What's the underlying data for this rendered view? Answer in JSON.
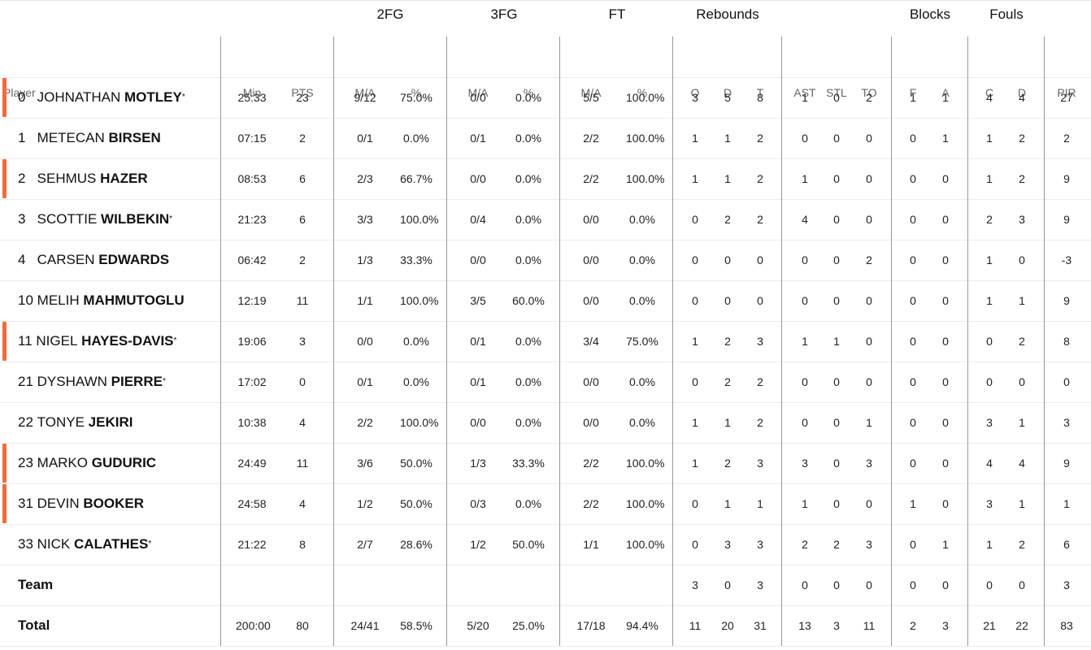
{
  "groups": {
    "twofg": "2FG",
    "threefg": "3FG",
    "ft": "FT",
    "rebounds": "Rebounds",
    "blocks": "Blocks",
    "fouls": "Fouls"
  },
  "columns": {
    "player": "Player",
    "min": "Min",
    "pts": "PTS",
    "fg2_ma": "M/A",
    "fg2_pct": "%",
    "fg3_ma": "M/A",
    "fg3_pct": "%",
    "ft_ma": "M/A",
    "ft_pct": "%",
    "reb_o": "O",
    "reb_d": "D",
    "reb_t": "T",
    "ast": "AST",
    "stl": "STL",
    "to": "TO",
    "blk_f": "F",
    "blk_a": "A",
    "foul_c": "C",
    "foul_d": "D",
    "pir": "PIR"
  },
  "accent_color": "#f26b3a",
  "players": [
    {
      "num": "0",
      "first": "JOHNATHAN",
      "last": "MOTLEY",
      "starter": "*",
      "on_court": true,
      "min": "25:33",
      "pts": "23",
      "fg2": "9/12",
      "fg2p": "75.0%",
      "fg3": "0/0",
      "fg3p": "0.0%",
      "ft": "5/5",
      "ftp": "100.0%",
      "o": "3",
      "d": "5",
      "t": "8",
      "ast": "1",
      "stl": "0",
      "to": "2",
      "bf": "1",
      "ba": "1",
      "fc": "4",
      "fd": "4",
      "pir": "27"
    },
    {
      "num": "1",
      "first": "METECAN",
      "last": "BIRSEN",
      "starter": "",
      "on_court": false,
      "min": "07:15",
      "pts": "2",
      "fg2": "0/1",
      "fg2p": "0.0%",
      "fg3": "0/1",
      "fg3p": "0.0%",
      "ft": "2/2",
      "ftp": "100.0%",
      "o": "1",
      "d": "1",
      "t": "2",
      "ast": "0",
      "stl": "0",
      "to": "0",
      "bf": "0",
      "ba": "1",
      "fc": "1",
      "fd": "2",
      "pir": "2"
    },
    {
      "num": "2",
      "first": "SEHMUS",
      "last": "HAZER",
      "starter": "",
      "on_court": true,
      "min": "08:53",
      "pts": "6",
      "fg2": "2/3",
      "fg2p": "66.7%",
      "fg3": "0/0",
      "fg3p": "0.0%",
      "ft": "2/2",
      "ftp": "100.0%",
      "o": "1",
      "d": "1",
      "t": "2",
      "ast": "1",
      "stl": "0",
      "to": "0",
      "bf": "0",
      "ba": "0",
      "fc": "1",
      "fd": "2",
      "pir": "9"
    },
    {
      "num": "3",
      "first": "SCOTTIE",
      "last": "WILBEKIN",
      "starter": "*",
      "on_court": false,
      "min": "21:23",
      "pts": "6",
      "fg2": "3/3",
      "fg2p": "100.0%",
      "fg3": "0/4",
      "fg3p": "0.0%",
      "ft": "0/0",
      "ftp": "0.0%",
      "o": "0",
      "d": "2",
      "t": "2",
      "ast": "4",
      "stl": "0",
      "to": "0",
      "bf": "0",
      "ba": "0",
      "fc": "2",
      "fd": "3",
      "pir": "9"
    },
    {
      "num": "4",
      "first": "CARSEN",
      "last": "EDWARDS",
      "starter": "",
      "on_court": false,
      "min": "06:42",
      "pts": "2",
      "fg2": "1/3",
      "fg2p": "33.3%",
      "fg3": "0/0",
      "fg3p": "0.0%",
      "ft": "0/0",
      "ftp": "0.0%",
      "o": "0",
      "d": "0",
      "t": "0",
      "ast": "0",
      "stl": "0",
      "to": "2",
      "bf": "0",
      "ba": "0",
      "fc": "1",
      "fd": "0",
      "pir": "-3"
    },
    {
      "num": "10",
      "first": "MELIH",
      "last": "MAHMUTOGLU",
      "starter": "",
      "on_court": false,
      "min": "12:19",
      "pts": "11",
      "fg2": "1/1",
      "fg2p": "100.0%",
      "fg3": "3/5",
      "fg3p": "60.0%",
      "ft": "0/0",
      "ftp": "0.0%",
      "o": "0",
      "d": "0",
      "t": "0",
      "ast": "0",
      "stl": "0",
      "to": "0",
      "bf": "0",
      "ba": "0",
      "fc": "1",
      "fd": "1",
      "pir": "9"
    },
    {
      "num": "11",
      "first": "NIGEL",
      "last": "HAYES-DAVIS",
      "starter": "*",
      "on_court": true,
      "min": "19:06",
      "pts": "3",
      "fg2": "0/0",
      "fg2p": "0.0%",
      "fg3": "0/1",
      "fg3p": "0.0%",
      "ft": "3/4",
      "ftp": "75.0%",
      "o": "1",
      "d": "2",
      "t": "3",
      "ast": "1",
      "stl": "1",
      "to": "0",
      "bf": "0",
      "ba": "0",
      "fc": "0",
      "fd": "2",
      "pir": "8"
    },
    {
      "num": "21",
      "first": "DYSHAWN",
      "last": "PIERRE",
      "starter": "*",
      "on_court": false,
      "min": "17:02",
      "pts": "0",
      "fg2": "0/1",
      "fg2p": "0.0%",
      "fg3": "0/1",
      "fg3p": "0.0%",
      "ft": "0/0",
      "ftp": "0.0%",
      "o": "0",
      "d": "2",
      "t": "2",
      "ast": "0",
      "stl": "0",
      "to": "0",
      "bf": "0",
      "ba": "0",
      "fc": "0",
      "fd": "0",
      "pir": "0"
    },
    {
      "num": "22",
      "first": "TONYE",
      "last": "JEKIRI",
      "starter": "",
      "on_court": false,
      "min": "10:38",
      "pts": "4",
      "fg2": "2/2",
      "fg2p": "100.0%",
      "fg3": "0/0",
      "fg3p": "0.0%",
      "ft": "0/0",
      "ftp": "0.0%",
      "o": "1",
      "d": "1",
      "t": "2",
      "ast": "0",
      "stl": "0",
      "to": "1",
      "bf": "0",
      "ba": "0",
      "fc": "3",
      "fd": "1",
      "pir": "3"
    },
    {
      "num": "23",
      "first": "MARKO",
      "last": "GUDURIC",
      "starter": "",
      "on_court": true,
      "min": "24:49",
      "pts": "11",
      "fg2": "3/6",
      "fg2p": "50.0%",
      "fg3": "1/3",
      "fg3p": "33.3%",
      "ft": "2/2",
      "ftp": "100.0%",
      "o": "1",
      "d": "2",
      "t": "3",
      "ast": "3",
      "stl": "0",
      "to": "3",
      "bf": "0",
      "ba": "0",
      "fc": "4",
      "fd": "4",
      "pir": "9"
    },
    {
      "num": "31",
      "first": "DEVIN",
      "last": "BOOKER",
      "starter": "",
      "on_court": true,
      "min": "24:58",
      "pts": "4",
      "fg2": "1/2",
      "fg2p": "50.0%",
      "fg3": "0/3",
      "fg3p": "0.0%",
      "ft": "2/2",
      "ftp": "100.0%",
      "o": "0",
      "d": "1",
      "t": "1",
      "ast": "1",
      "stl": "0",
      "to": "0",
      "bf": "1",
      "ba": "0",
      "fc": "3",
      "fd": "1",
      "pir": "1"
    },
    {
      "num": "33",
      "first": "NICK",
      "last": "CALATHES",
      "starter": "*",
      "on_court": false,
      "min": "21:22",
      "pts": "8",
      "fg2": "2/7",
      "fg2p": "28.6%",
      "fg3": "1/2",
      "fg3p": "50.0%",
      "ft": "1/1",
      "ftp": "100.0%",
      "o": "0",
      "d": "3",
      "t": "3",
      "ast": "2",
      "stl": "2",
      "to": "3",
      "bf": "0",
      "ba": "1",
      "fc": "1",
      "fd": "2",
      "pir": "6"
    }
  ],
  "team": {
    "label": "Team",
    "min": "",
    "pts": "",
    "fg2": "",
    "fg2p": "",
    "fg3": "",
    "fg3p": "",
    "ft": "",
    "ftp": "",
    "o": "3",
    "d": "0",
    "t": "3",
    "ast": "0",
    "stl": "0",
    "to": "0",
    "bf": "0",
    "ba": "0",
    "fc": "0",
    "fd": "0",
    "pir": "3"
  },
  "total": {
    "label": "Total",
    "min": "200:00",
    "pts": "80",
    "fg2": "24/41",
    "fg2p": "58.5%",
    "fg3": "5/20",
    "fg3p": "25.0%",
    "ft": "17/18",
    "ftp": "94.4%",
    "o": "11",
    "d": "20",
    "t": "31",
    "ast": "13",
    "stl": "3",
    "to": "11",
    "bf": "2",
    "ba": "3",
    "fc": "21",
    "fd": "22",
    "pir": "83"
  }
}
